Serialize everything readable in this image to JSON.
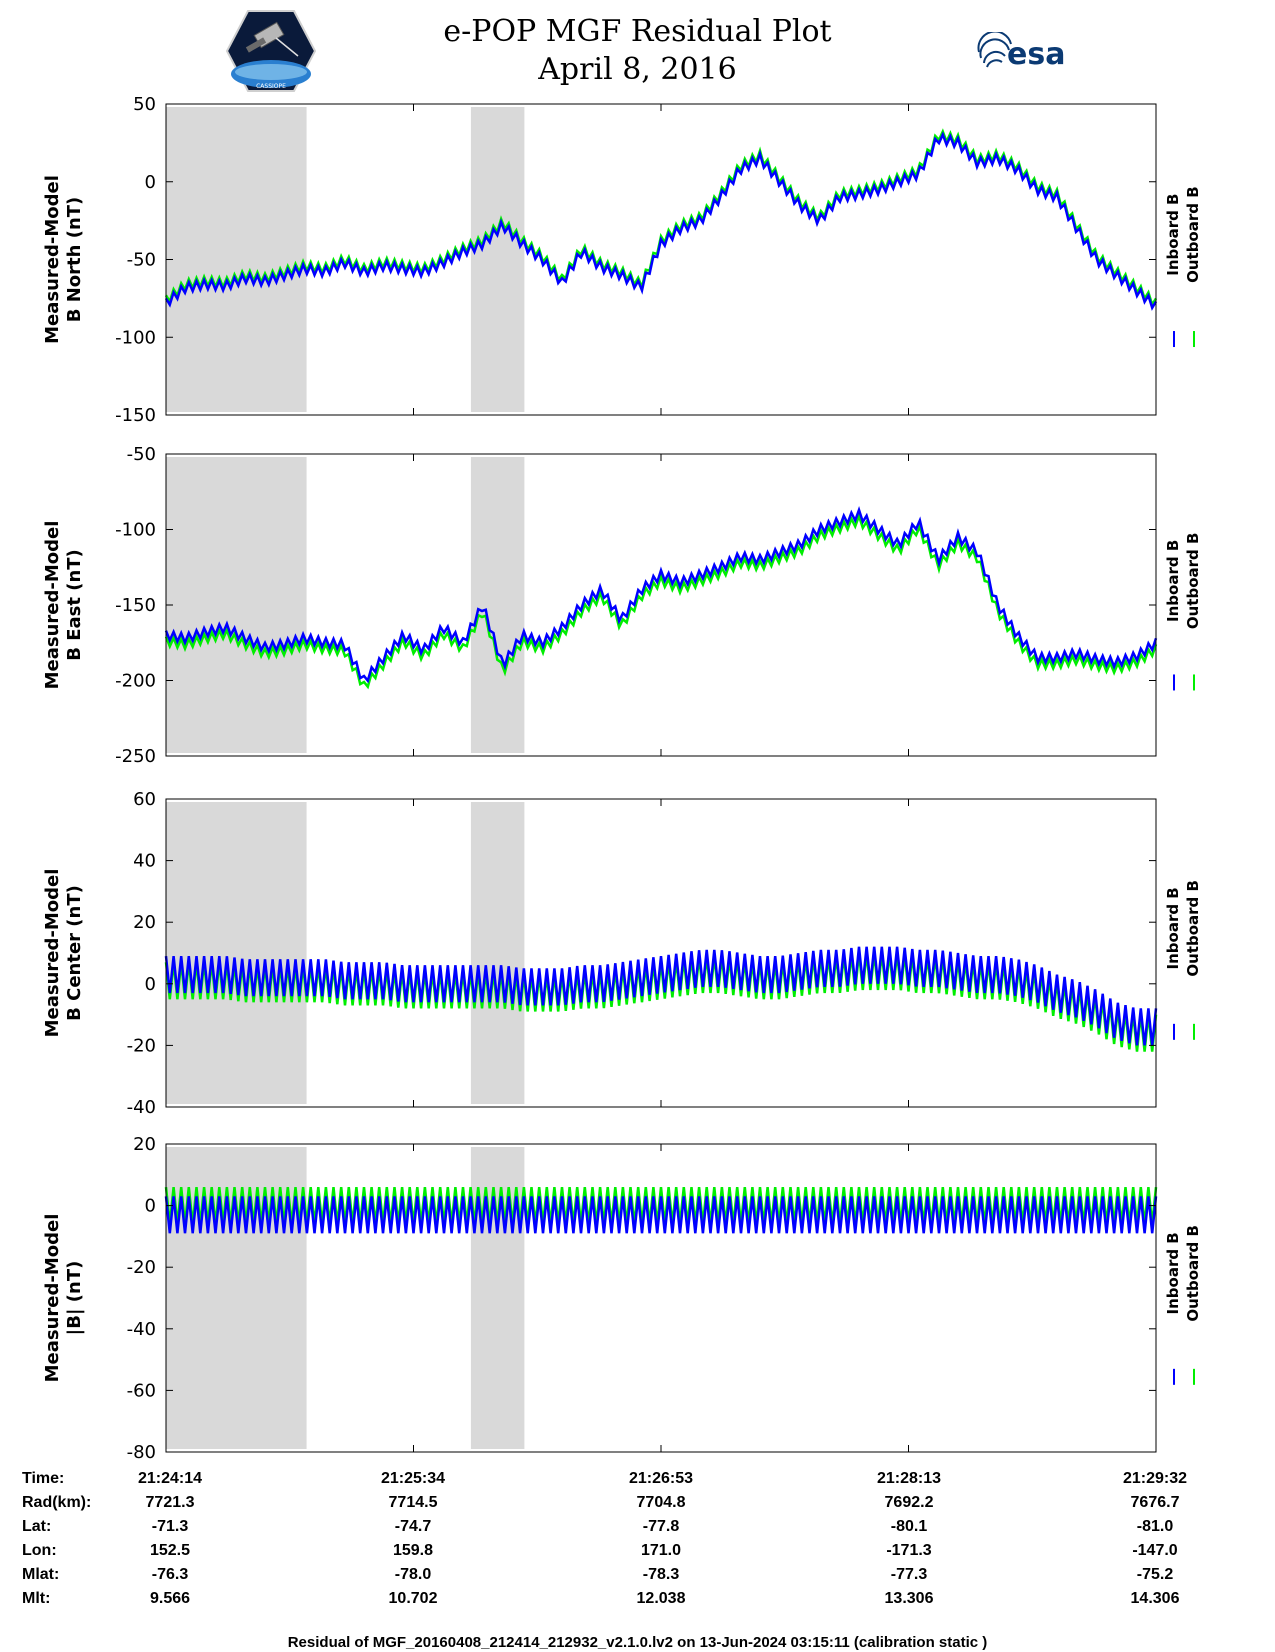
{
  "header": {
    "title": "e-POP MGF Residual Plot",
    "date": "April 8, 2016",
    "logo_left": "CASSIOPE",
    "logo_right": "esa"
  },
  "colors": {
    "inboard": "#0000ff",
    "outboard": "#00ee00",
    "gap": "#d9d9d9"
  },
  "chart_data": [
    {
      "type": "line",
      "ylabel_1": "Measured-Model",
      "ylabel_2": "B North (nT)",
      "ylim": [
        -150,
        50
      ],
      "yticks": [
        50,
        0,
        -50,
        -100,
        -150
      ],
      "legend": [
        "Inboard B",
        "Outboard B"
      ],
      "legend_position": "right",
      "x": [
        0.0,
        0.02,
        0.04,
        0.06,
        0.08,
        0.1,
        0.12,
        0.14,
        0.16,
        0.18,
        0.2,
        0.22,
        0.24,
        0.26,
        0.28,
        0.3,
        0.32,
        0.34,
        0.36,
        0.38,
        0.4,
        0.42,
        0.44,
        0.46,
        0.48,
        0.5,
        0.52,
        0.54,
        0.56,
        0.58,
        0.6,
        0.62,
        0.64,
        0.66,
        0.68,
        0.7,
        0.72,
        0.74,
        0.76,
        0.78,
        0.8,
        0.82,
        0.84,
        0.86,
        0.88,
        0.9,
        0.92,
        0.94,
        0.96,
        0.98,
        1.0
      ],
      "series": [
        {
          "name": "Inboard B",
          "values": [
            -78,
            -68,
            -66,
            -67,
            -62,
            -64,
            -60,
            -56,
            -58,
            -52,
            -58,
            -54,
            -56,
            -58,
            -52,
            -45,
            -40,
            -28,
            -40,
            -50,
            -65,
            -45,
            -55,
            -60,
            -68,
            -40,
            -30,
            -25,
            -10,
            8,
            15,
            0,
            -15,
            -25,
            -10,
            -8,
            -5,
            0,
            5,
            28,
            25,
            12,
            15,
            8,
            -5,
            -10,
            -30,
            -50,
            -60,
            -70,
            -80
          ]
        },
        {
          "name": "Outboard B",
          "values": [
            -76,
            -66,
            -64,
            -65,
            -60,
            -62,
            -58,
            -54,
            -56,
            -50,
            -56,
            -52,
            -54,
            -56,
            -50,
            -43,
            -38,
            -26,
            -38,
            -48,
            -63,
            -43,
            -53,
            -58,
            -66,
            -38,
            -28,
            -23,
            -8,
            10,
            17,
            2,
            -13,
            -23,
            -8,
            -6,
            -3,
            2,
            7,
            30,
            27,
            14,
            17,
            10,
            -3,
            -8,
            -28,
            -48,
            -58,
            -68,
            -78
          ]
        }
      ]
    },
    {
      "type": "line",
      "ylabel_1": "Measured-Model",
      "ylabel_2": "B East (nT)",
      "ylim": [
        -250,
        -50
      ],
      "yticks": [
        -50,
        -100,
        -150,
        -200,
        -250
      ],
      "legend": [
        "Inboard B",
        "Outboard B"
      ],
      "legend_position": "right",
      "x": [
        0.0,
        0.02,
        0.04,
        0.06,
        0.08,
        0.1,
        0.12,
        0.14,
        0.16,
        0.18,
        0.2,
        0.22,
        0.24,
        0.26,
        0.28,
        0.3,
        0.32,
        0.34,
        0.36,
        0.38,
        0.4,
        0.42,
        0.44,
        0.46,
        0.48,
        0.5,
        0.52,
        0.54,
        0.56,
        0.58,
        0.6,
        0.62,
        0.64,
        0.66,
        0.68,
        0.7,
        0.72,
        0.74,
        0.76,
        0.78,
        0.8,
        0.82,
        0.84,
        0.86,
        0.88,
        0.9,
        0.92,
        0.94,
        0.96,
        0.98,
        1.0
      ],
      "series": [
        {
          "name": "Inboard B",
          "values": [
            -170,
            -172,
            -168,
            -165,
            -172,
            -178,
            -176,
            -172,
            -175,
            -176,
            -200,
            -185,
            -170,
            -180,
            -165,
            -175,
            -150,
            -190,
            -170,
            -175,
            -165,
            -150,
            -140,
            -160,
            -140,
            -130,
            -135,
            -130,
            -125,
            -118,
            -120,
            -115,
            -110,
            -100,
            -95,
            -90,
            -100,
            -110,
            -95,
            -120,
            -105,
            -115,
            -150,
            -170,
            -185,
            -185,
            -182,
            -186,
            -188,
            -184,
            -175
          ]
        },
        {
          "name": "Outboard B",
          "values": [
            -174,
            -176,
            -172,
            -169,
            -176,
            -182,
            -180,
            -176,
            -179,
            -180,
            -204,
            -189,
            -174,
            -184,
            -169,
            -179,
            -154,
            -194,
            -174,
            -179,
            -169,
            -154,
            -144,
            -164,
            -144,
            -134,
            -139,
            -134,
            -129,
            -122,
            -124,
            -119,
            -114,
            -104,
            -99,
            -94,
            -104,
            -114,
            -99,
            -124,
            -109,
            -119,
            -154,
            -174,
            -189,
            -189,
            -186,
            -190,
            -192,
            -188,
            -179
          ]
        }
      ]
    },
    {
      "type": "line",
      "ylabel_1": "Measured-Model",
      "ylabel_2": "B Center (nT)",
      "ylim": [
        -40,
        60
      ],
      "yticks": [
        60,
        40,
        20,
        0,
        -20,
        -40
      ],
      "legend": [
        "Inboard B",
        "Outboard B"
      ],
      "legend_position": "right",
      "x": [
        0.0,
        0.02,
        0.04,
        0.06,
        0.08,
        0.1,
        0.12,
        0.14,
        0.16,
        0.18,
        0.2,
        0.22,
        0.24,
        0.26,
        0.28,
        0.3,
        0.32,
        0.34,
        0.36,
        0.38,
        0.4,
        0.42,
        0.44,
        0.46,
        0.48,
        0.5,
        0.52,
        0.54,
        0.56,
        0.58,
        0.6,
        0.62,
        0.64,
        0.66,
        0.68,
        0.7,
        0.72,
        0.74,
        0.76,
        0.78,
        0.8,
        0.82,
        0.84,
        0.86,
        0.88,
        0.9,
        0.92,
        0.94,
        0.96,
        0.98,
        1.0
      ],
      "series": [
        {
          "name": "Inboard B",
          "values": [
            3,
            3,
            3,
            3,
            2,
            2,
            2,
            2,
            2,
            1,
            1,
            1,
            0,
            0,
            0,
            0,
            0,
            0,
            -1,
            -1,
            -1,
            0,
            0,
            1,
            2,
            3,
            4,
            5,
            5,
            4,
            3,
            3,
            4,
            5,
            5,
            6,
            6,
            6,
            5,
            5,
            4,
            3,
            3,
            2,
            0,
            -3,
            -5,
            -8,
            -12,
            -14,
            -14
          ]
        },
        {
          "name": "Outboard B",
          "values": [
            1,
            1,
            1,
            1,
            0,
            0,
            0,
            0,
            0,
            -1,
            -1,
            -1,
            -2,
            -2,
            -2,
            -2,
            -2,
            -2,
            -3,
            -3,
            -3,
            -2,
            -2,
            -1,
            0,
            1,
            2,
            3,
            3,
            2,
            1,
            1,
            2,
            3,
            3,
            4,
            4,
            4,
            3,
            3,
            2,
            1,
            1,
            0,
            -2,
            -5,
            -7,
            -10,
            -14,
            -16,
            -16
          ]
        }
      ]
    },
    {
      "type": "line",
      "ylabel_1": "Measured-Model",
      "ylabel_2": "|B| (nT)",
      "ylim": [
        -80,
        20
      ],
      "yticks": [
        20,
        0,
        -20,
        -40,
        -60,
        -80
      ],
      "legend": [
        "Inboard B",
        "Outboard B"
      ],
      "legend_position": "right",
      "x": [
        0.0,
        0.02,
        0.04,
        0.06,
        0.08,
        0.1,
        0.12,
        0.14,
        0.16,
        0.18,
        0.2,
        0.22,
        0.24,
        0.26,
        0.28,
        0.3,
        0.32,
        0.34,
        0.36,
        0.38,
        0.4,
        0.42,
        0.44,
        0.46,
        0.48,
        0.5,
        0.52,
        0.54,
        0.56,
        0.58,
        0.6,
        0.62,
        0.64,
        0.66,
        0.68,
        0.7,
        0.72,
        0.74,
        0.76,
        0.78,
        0.8,
        0.82,
        0.84,
        0.86,
        0.88,
        0.9,
        0.92,
        0.94,
        0.96,
        0.98,
        1.0
      ],
      "series": [
        {
          "name": "Inboard B",
          "values": [
            -3,
            -3,
            -3,
            -3,
            -3,
            -3,
            -3,
            -3,
            -3,
            -3,
            -3,
            -3,
            -3,
            -3,
            -3,
            -3,
            -3,
            -3,
            -3,
            -3,
            -3,
            -3,
            -3,
            -3,
            -3,
            -3,
            -3,
            -3,
            -3,
            -3,
            -3,
            -3,
            -3,
            -3,
            -3,
            -3,
            -3,
            -3,
            -3,
            -3,
            -3,
            -3,
            -3,
            -3,
            -3,
            -3,
            -3,
            -3,
            -3,
            -3,
            -3
          ]
        },
        {
          "name": "Outboard B",
          "values": [
            0,
            0,
            0,
            0,
            0,
            0,
            0,
            0,
            0,
            0,
            0,
            0,
            0,
            0,
            0,
            0,
            0,
            0,
            0,
            0,
            0,
            0,
            0,
            0,
            0,
            0,
            0,
            0,
            0,
            0,
            0,
            0,
            0,
            0,
            0,
            0,
            0,
            0,
            0,
            0,
            0,
            0,
            0,
            0,
            0,
            0,
            0,
            0,
            0,
            0,
            0
          ]
        }
      ]
    }
  ],
  "gaps": [
    [
      0.0,
      0.142
    ],
    [
      0.308,
      0.362
    ]
  ],
  "time_table": {
    "labels": [
      "Time:",
      "Rad(km):",
      "Lat:",
      "Lon:",
      "Mlat:",
      "Mlt:"
    ],
    "columns": [
      [
        "21:24:14",
        "7721.3",
        "-71.3",
        "152.5",
        "-76.3",
        "9.566"
      ],
      [
        "21:25:34",
        "7714.5",
        "-74.7",
        "159.8",
        "-78.0",
        "10.702"
      ],
      [
        "21:26:53",
        "7704.8",
        "-77.8",
        "171.0",
        "-78.3",
        "12.038"
      ],
      [
        "21:28:13",
        "7692.2",
        "-80.1",
        "-171.3",
        "-77.3",
        "13.306"
      ],
      [
        "21:29:32",
        "7676.7",
        "-81.0",
        "-147.0",
        "-75.2",
        "14.306"
      ]
    ]
  },
  "footer": "Residual of MGF_20160408_212414_212932_v2.1.0.lv2 on 13-Jun-2024 03:15:11 (calibration static )"
}
